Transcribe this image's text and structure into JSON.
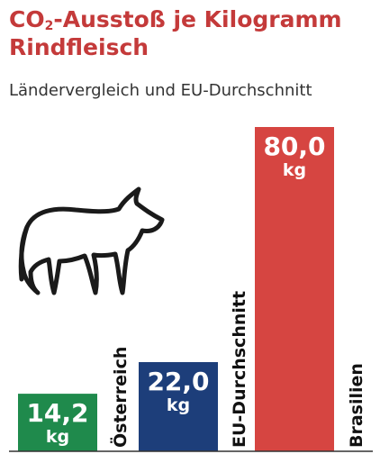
{
  "title": {
    "pre": "CO",
    "sub": "2",
    "post": "-Ausstoß je Kilogramm Rindfleisch"
  },
  "subtitle": "Ländervergleich und EU-Durchschnitt",
  "icons": {
    "cow": "cow-icon"
  },
  "colors": {
    "title": "#c43a3a",
    "oesterreich": "#1f8a4c",
    "eu": "#1d3e7a",
    "brasilien": "#d64541"
  },
  "chart_data": {
    "type": "bar",
    "categories": [
      "Österreich",
      "EU-Durchschnitt",
      "Brasilien"
    ],
    "values": [
      14.2,
      22.0,
      80.0
    ],
    "value_labels": [
      "14,2",
      "22,0",
      "80,0"
    ],
    "unit": "kg",
    "colors": [
      "#1f8a4c",
      "#1d3e7a",
      "#d64541"
    ],
    "ylim": [
      0,
      80
    ],
    "grid": false,
    "legend": "none"
  }
}
